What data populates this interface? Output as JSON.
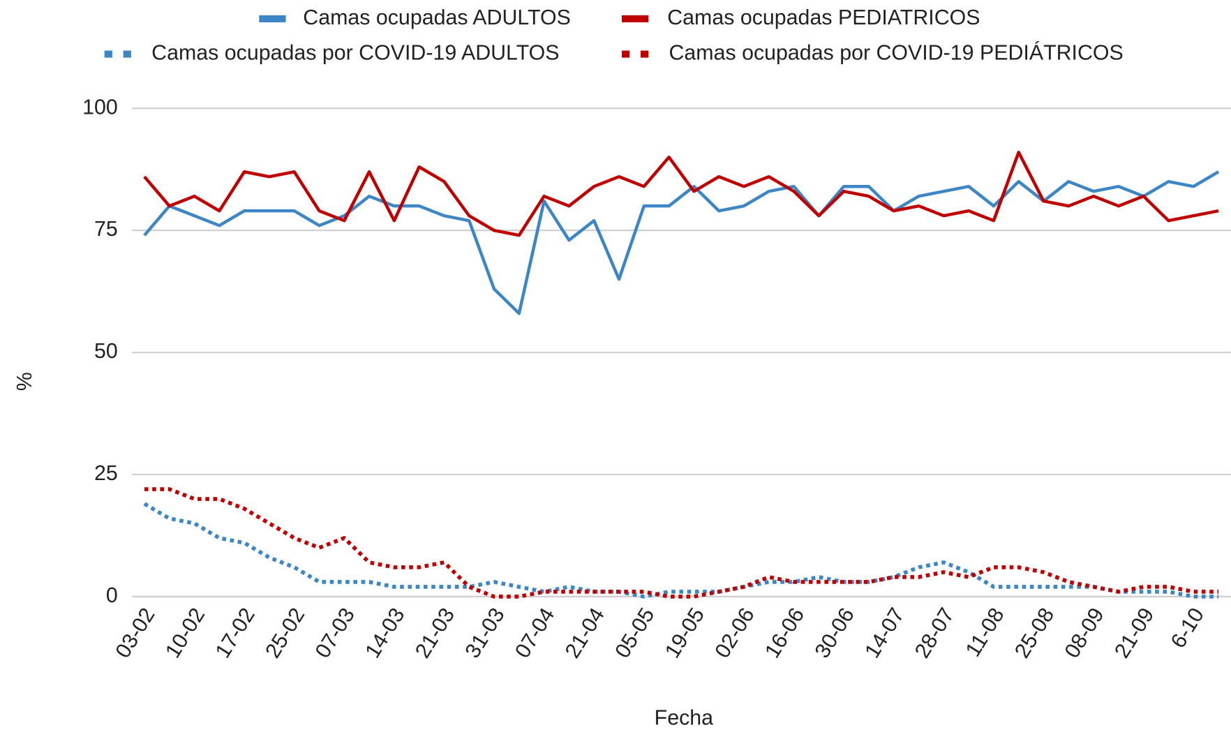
{
  "chart_data": {
    "type": "line",
    "x_label": "Fecha",
    "y_label": "%",
    "categories": [
      "03-02",
      null,
      "10-02",
      null,
      "17-02",
      null,
      "25-02",
      null,
      "07-03",
      null,
      "14-03",
      null,
      "21-03",
      null,
      "31-03",
      null,
      "07-04",
      null,
      "21-04",
      null,
      "05-05",
      null,
      "19-05",
      null,
      "02-06",
      null,
      "16-06",
      null,
      "30-06",
      null,
      "14-07",
      null,
      "28-07",
      null,
      "11-08",
      null,
      "25-08",
      null,
      "08-09",
      null,
      "21-09",
      null,
      "6-10",
      null
    ],
    "series": [
      {
        "name": "Camas ocupadas ADULTOS",
        "color": "#3d86c6",
        "style": "solid",
        "values": [
          74,
          80,
          78,
          76,
          79,
          79,
          79,
          76,
          78,
          82,
          80,
          80,
          78,
          77,
          63,
          58,
          81,
          73,
          77,
          65,
          80,
          80,
          84,
          79,
          80,
          83,
          84,
          78,
          84,
          84,
          79,
          82,
          83,
          84,
          80,
          85,
          81,
          85,
          83,
          84,
          82,
          85,
          84,
          87
        ]
      },
      {
        "name": "Camas ocupadas PEDIATRICOS",
        "color": "#c00000",
        "style": "solid",
        "values": [
          86,
          80,
          82,
          79,
          87,
          86,
          87,
          79,
          77,
          87,
          77,
          88,
          85,
          78,
          75,
          74,
          82,
          80,
          84,
          86,
          84,
          90,
          83,
          86,
          84,
          86,
          83,
          78,
          83,
          82,
          79,
          80,
          78,
          79,
          77,
          91,
          81,
          80,
          82,
          80,
          82,
          77,
          78,
          79
        ]
      },
      {
        "name": "Camas ocupadas por COVID-19 ADULTOS",
        "color": "#3d86c6",
        "style": "dotted",
        "values": [
          19,
          16,
          15,
          12,
          11,
          8,
          6,
          3,
          3,
          3,
          2,
          2,
          2,
          2,
          3,
          2,
          1,
          2,
          1,
          1,
          0,
          1,
          1,
          1,
          2,
          3,
          3,
          4,
          3,
          3,
          4,
          6,
          7,
          5,
          2,
          2,
          2,
          2,
          2,
          1,
          1,
          1,
          0,
          0
        ]
      },
      {
        "name": "Camas ocupadas por COVID-19 PEDIÁTRICOS",
        "color": "#c00000",
        "style": "dotted",
        "values": [
          22,
          22,
          20,
          20,
          18,
          15,
          12,
          10,
          12,
          7,
          6,
          6,
          7,
          2,
          0,
          0,
          1,
          1,
          1,
          1,
          1,
          0,
          0,
          1,
          2,
          4,
          3,
          3,
          3,
          3,
          4,
          4,
          5,
          4,
          6,
          6,
          5,
          3,
          2,
          1,
          2,
          2,
          1,
          1
        ]
      }
    ],
    "ylim": [
      0,
      100
    ],
    "yticks": [
      0,
      25,
      50,
      75,
      100
    ],
    "grid": true,
    "legend": "top"
  }
}
